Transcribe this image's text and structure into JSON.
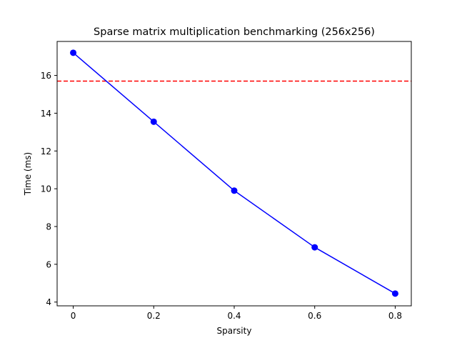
{
  "chart_data": {
    "type": "line",
    "title": "Sparse matrix multiplication benchmarking (256x256)",
    "xlabel": "Sparsity",
    "ylabel": "Time (ms)",
    "x": [
      0.0,
      0.2,
      0.4,
      0.6,
      0.8
    ],
    "series": [
      {
        "values": [
          17.2,
          13.55,
          9.9,
          6.9,
          4.45
        ],
        "color": "#0000ff",
        "marker": "circle",
        "line_style": "solid"
      }
    ],
    "reference_lines": [
      {
        "orientation": "horizontal",
        "y": 15.7,
        "color": "#ff0000",
        "line_style": "dashed"
      }
    ],
    "xlim": [
      -0.04,
      0.84
    ],
    "ylim": [
      3.8,
      17.8
    ],
    "xticks": [
      0.0,
      0.2,
      0.4,
      0.6,
      0.8
    ],
    "xtick_labels": [
      "0",
      "0.2",
      "0.4",
      "0.6",
      "0.8"
    ],
    "yticks": [
      4,
      6,
      8,
      10,
      12,
      14,
      16
    ],
    "ytick_labels": [
      "4",
      "6",
      "8",
      "10",
      "12",
      "14",
      "16"
    ],
    "grid": false,
    "legend": "none"
  }
}
